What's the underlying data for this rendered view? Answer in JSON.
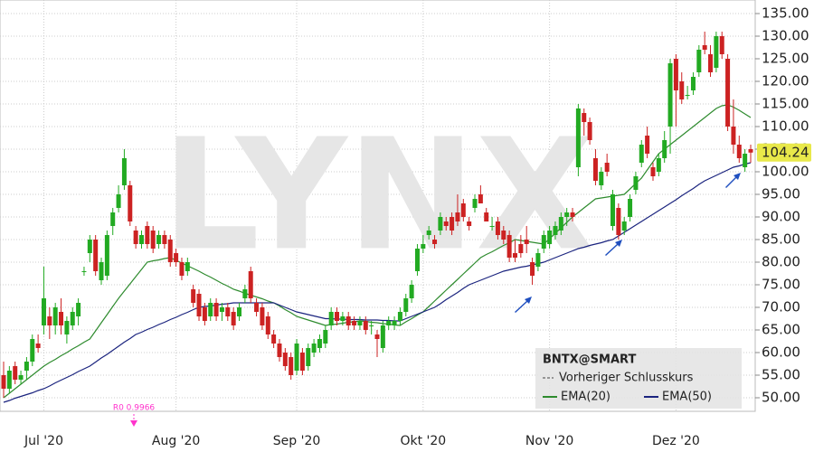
{
  "chart_data": {
    "type": "candlestick",
    "watermark": "LYNX",
    "symbol": "BNTX@SMART",
    "legend_items": [
      "Vorheriger Schlusskurs",
      "EMA(20)",
      "EMA(50)"
    ],
    "annotation": "R0 0.9966",
    "annotation_color": "#ff33cc",
    "up_color": "#22aa22",
    "down_color": "#cc2222",
    "categories": [
      null,
      null,
      null,
      null,
      null,
      null,
      null,
      "Jul '20",
      null,
      null,
      null,
      null,
      null,
      null,
      null,
      null,
      null,
      null,
      null,
      null,
      null,
      null,
      null,
      null,
      null,
      null,
      null,
      null,
      null,
      null,
      "Aug '20",
      null,
      null,
      null,
      null,
      null,
      null,
      null,
      null,
      null,
      null,
      null,
      null,
      null,
      null,
      null,
      null,
      null,
      null,
      null,
      null,
      "Sep '20",
      null,
      null,
      null,
      null,
      null,
      null,
      null,
      null,
      null,
      null,
      null,
      null,
      null,
      null,
      null,
      null,
      null,
      null,
      null,
      null,
      null,
      "Okt '20",
      null,
      null,
      null,
      null,
      null,
      null,
      null,
      null,
      null,
      null,
      null,
      null,
      null,
      null,
      null,
      null,
      null,
      null,
      null,
      null,
      null,
      "Nov '20",
      null,
      null,
      null,
      null,
      null,
      null,
      null,
      null,
      null,
      null,
      null,
      null,
      null,
      null,
      null,
      null,
      null,
      null,
      null,
      null,
      null,
      "Dez '20",
      null,
      null,
      null,
      null,
      null,
      null,
      null,
      null,
      null,
      null,
      null,
      null,
      null
    ],
    "candles": [
      [
        55,
        58,
        50,
        52
      ],
      [
        52,
        57,
        51,
        56
      ],
      [
        57,
        58,
        53,
        54
      ],
      [
        54,
        56,
        53,
        55
      ],
      [
        56,
        59,
        54,
        58
      ],
      [
        58,
        64,
        57,
        63
      ],
      [
        62,
        64,
        60,
        61
      ],
      [
        66,
        79,
        64,
        72
      ],
      [
        68,
        70,
        63,
        66
      ],
      [
        66,
        71,
        64,
        70
      ],
      [
        69,
        72,
        64,
        66
      ],
      [
        64,
        68,
        62,
        67
      ],
      [
        66,
        70,
        65,
        69
      ],
      [
        68,
        72,
        66,
        71
      ],
      [
        78,
        79,
        77,
        78
      ],
      [
        82,
        86,
        80,
        85
      ],
      [
        85,
        86,
        77,
        78
      ],
      [
        76,
        81,
        75,
        80
      ],
      [
        77,
        87,
        76,
        86
      ],
      [
        88,
        92,
        86,
        91
      ],
      [
        92,
        97,
        91,
        95
      ],
      [
        97,
        105,
        96,
        103
      ],
      [
        97,
        98,
        88,
        89
      ],
      [
        87,
        88,
        83,
        84
      ],
      [
        84,
        87,
        83,
        86
      ],
      [
        88,
        89,
        83,
        84
      ],
      [
        87,
        88,
        82,
        83
      ],
      [
        84,
        87,
        83,
        86
      ],
      [
        86,
        87,
        83,
        84
      ],
      [
        85,
        86,
        79,
        80
      ],
      [
        82,
        83,
        79,
        80
      ],
      [
        80,
        81,
        76,
        77
      ],
      [
        78,
        81,
        77,
        80
      ],
      [
        74,
        75,
        70,
        71
      ],
      [
        73,
        74,
        67,
        68
      ],
      [
        70,
        71,
        66,
        67
      ],
      [
        68,
        72,
        67,
        71
      ],
      [
        71,
        72,
        67,
        68
      ],
      [
        69,
        71,
        67,
        70
      ],
      [
        70,
        71,
        67,
        68
      ],
      [
        69,
        70,
        65,
        66
      ],
      [
        68,
        71,
        67,
        70
      ],
      [
        72,
        75,
        71,
        74
      ],
      [
        78,
        79,
        71,
        72
      ],
      [
        71,
        72,
        68,
        69
      ],
      [
        70,
        71,
        65,
        66
      ],
      [
        68,
        69,
        63,
        64
      ],
      [
        64,
        65,
        61,
        62
      ],
      [
        62,
        63,
        58,
        59
      ],
      [
        60,
        61,
        56,
        57
      ],
      [
        59,
        60,
        54,
        55
      ],
      [
        56,
        63,
        55,
        62
      ],
      [
        60,
        61,
        55,
        56
      ],
      [
        57,
        62,
        56,
        61
      ],
      [
        60,
        63,
        59,
        62
      ],
      [
        61,
        64,
        60,
        63
      ],
      [
        62,
        66,
        61,
        65
      ],
      [
        66,
        70,
        65,
        69
      ],
      [
        69,
        70,
        66,
        67
      ],
      [
        67,
        69,
        66,
        68
      ],
      [
        68,
        69,
        65,
        66
      ],
      [
        67,
        68,
        65,
        66
      ],
      [
        66,
        68,
        65,
        67
      ],
      [
        67,
        68,
        64,
        65
      ],
      [
        66,
        67,
        64,
        66
      ],
      [
        64,
        65,
        59,
        63
      ],
      [
        61,
        67,
        60,
        66
      ],
      [
        66,
        68,
        65,
        67
      ],
      [
        66,
        68,
        65,
        67
      ],
      [
        67,
        70,
        66,
        69
      ],
      [
        69,
        73,
        68,
        72
      ],
      [
        72,
        76,
        71,
        75
      ],
      [
        78,
        84,
        77,
        83
      ],
      [
        83,
        86,
        82,
        84
      ],
      [
        86,
        88,
        85,
        87
      ],
      [
        85,
        86,
        83,
        84
      ],
      [
        87,
        91,
        86,
        90
      ],
      [
        89,
        90,
        87,
        88
      ],
      [
        90,
        91,
        86,
        87
      ],
      [
        91,
        95,
        88,
        89
      ],
      [
        93,
        94,
        89,
        90
      ],
      [
        89,
        90,
        87,
        88
      ],
      [
        92,
        95,
        91,
        94
      ],
      [
        95,
        97,
        93,
        93
      ],
      [
        91,
        92,
        89,
        89
      ],
      [
        88,
        90,
        87,
        88
      ],
      [
        89,
        90,
        85,
        86
      ],
      [
        87,
        88,
        84,
        85
      ],
      [
        86,
        87,
        80,
        81
      ],
      [
        82,
        85,
        80,
        81
      ],
      [
        84,
        86,
        81,
        82
      ],
      [
        85,
        88,
        82,
        84
      ],
      [
        80,
        81,
        75,
        77
      ],
      [
        79,
        83,
        78,
        82
      ],
      [
        83,
        87,
        82,
        86
      ],
      [
        84,
        88,
        83,
        87
      ],
      [
        86,
        89,
        85,
        88
      ],
      [
        87,
        91,
        86,
        90
      ],
      [
        90,
        92,
        88,
        91
      ],
      [
        91,
        92,
        89,
        90
      ],
      [
        101,
        115,
        99,
        114
      ],
      [
        113,
        114,
        108,
        111
      ],
      [
        111,
        112,
        106,
        107
      ],
      [
        103,
        105,
        97,
        98
      ],
      [
        97,
        101,
        96,
        100
      ],
      [
        102,
        104,
        99,
        100
      ],
      [
        88,
        96,
        87,
        95
      ],
      [
        92,
        93,
        85,
        86
      ],
      [
        87,
        90,
        86,
        89
      ],
      [
        90,
        95,
        89,
        94
      ],
      [
        96,
        100,
        95,
        99
      ],
      [
        102,
        107,
        101,
        106
      ],
      [
        108,
        110,
        103,
        104
      ],
      [
        101,
        102,
        98,
        99
      ],
      [
        100,
        104,
        99,
        103
      ],
      [
        103,
        109,
        102,
        107
      ],
      [
        110,
        125,
        104,
        124
      ],
      [
        125,
        126,
        110,
        118
      ],
      [
        120,
        122,
        115,
        116
      ],
      [
        117,
        119,
        116,
        117
      ],
      [
        118,
        122,
        117,
        121
      ],
      [
        122,
        128,
        121,
        127
      ],
      [
        128,
        131,
        126,
        127
      ],
      [
        126,
        128,
        121,
        122
      ],
      [
        123,
        131,
        122,
        130
      ],
      [
        130,
        131,
        125,
        126
      ],
      [
        125,
        126,
        109,
        110
      ],
      [
        110,
        116,
        104,
        106
      ],
      [
        106,
        108,
        102,
        103
      ],
      [
        101,
        105,
        100,
        104
      ],
      [
        105,
        106,
        102,
        104.24
      ]
    ],
    "series": [
      {
        "name": "EMA(20)",
        "color": "#2e8b2e",
        "values": [
          50,
          51,
          52,
          53,
          54,
          55,
          56,
          57,
          57.8,
          58.5,
          59.3,
          60,
          60.8,
          61.5,
          62.3,
          63,
          64.8,
          66.6,
          68.4,
          70.2,
          72,
          73.6,
          75.2,
          76.8,
          78.4,
          80,
          80.3,
          80.5,
          80.8,
          81,
          80.4,
          79.8,
          79.2,
          78.6,
          78,
          77.3,
          76.7,
          76,
          75.3,
          74.7,
          74,
          73.6,
          73.1,
          72.7,
          72.3,
          71.9,
          71.4,
          71,
          70.3,
          69.5,
          68.8,
          68,
          67.6,
          67.2,
          66.8,
          66.4,
          66,
          66.2,
          66.3,
          66.5,
          66.7,
          66.8,
          67,
          66.9,
          66.7,
          66.6,
          66.4,
          66.3,
          66.1,
          66,
          66.8,
          67.5,
          68.3,
          69,
          70.2,
          71.4,
          72.6,
          73.8,
          75,
          76.2,
          77.4,
          78.6,
          79.8,
          81,
          81.7,
          82.3,
          83,
          83.7,
          84.3,
          85,
          84.8,
          84.6,
          84.4,
          84.2,
          84,
          85.2,
          86.4,
          87.6,
          88.8,
          90,
          91,
          92,
          93,
          94,
          94.2,
          94.4,
          94.6,
          94.8,
          95,
          96.2,
          97.4,
          98.6,
          100.4,
          102.2,
          104,
          105,
          106,
          107,
          108,
          109,
          110,
          111,
          112,
          113,
          114,
          114.6,
          114.8,
          114.3,
          113.6,
          112.8,
          112
        ]
      },
      {
        "name": "EMA(50)",
        "color": "#1a237e",
        "values": [
          49,
          49.4,
          49.9,
          50.3,
          50.7,
          51.1,
          51.6,
          52,
          52.6,
          53.3,
          53.9,
          54.5,
          55.1,
          55.8,
          56.4,
          57,
          57.9,
          58.8,
          59.6,
          60.5,
          61.4,
          62.3,
          63.1,
          64,
          64.5,
          65.1,
          65.6,
          66.2,
          66.7,
          67.3,
          67.8,
          68.4,
          68.9,
          69.5,
          70,
          70.2,
          70.3,
          70.5,
          70.7,
          70.8,
          71,
          71,
          71,
          71,
          71,
          71,
          71,
          71,
          70.5,
          70,
          69.5,
          69,
          68.7,
          68.4,
          68.1,
          67.8,
          67.5,
          67.5,
          67.4,
          67.4,
          67.3,
          67.3,
          67.3,
          67.2,
          67.2,
          67.2,
          67.1,
          67.1,
          67,
          67,
          67.5,
          68,
          68.5,
          69,
          69.5,
          70,
          70.8,
          71.7,
          72.5,
          73.3,
          74.2,
          75,
          75.5,
          76,
          76.5,
          77,
          77.5,
          78,
          78.3,
          78.6,
          78.9,
          79.1,
          79.4,
          79.7,
          80,
          80.5,
          81,
          81.5,
          82,
          82.5,
          83,
          83.3,
          83.7,
          84,
          84.3,
          84.7,
          85,
          85.8,
          86.6,
          87.4,
          88.2,
          89,
          89.8,
          90.6,
          91.4,
          92.2,
          93,
          93.8,
          94.7,
          95.5,
          96.3,
          97.2,
          98,
          98.6,
          99.2,
          99.8,
          100.4,
          101,
          101.3,
          101.7,
          102
        ]
      }
    ],
    "ylim": [
      47,
      138
    ],
    "yticks": [
      {
        "value": 50,
        "label": "50.00"
      },
      {
        "value": 55,
        "label": "55.00"
      },
      {
        "value": 60,
        "label": "60.00"
      },
      {
        "value": 65,
        "label": "65.00"
      },
      {
        "value": 70,
        "label": "70.00"
      },
      {
        "value": 75,
        "label": "75.00"
      },
      {
        "value": 80,
        "label": "80.00"
      },
      {
        "value": 85,
        "label": "85.00"
      },
      {
        "value": 90,
        "label": "90.00"
      },
      {
        "value": 95,
        "label": "95.00"
      },
      {
        "value": 100,
        "label": "100.00"
      },
      {
        "value": 105,
        "label": "105.00"
      },
      {
        "value": 110,
        "label": "110.00"
      },
      {
        "value": 115,
        "label": "115.00"
      },
      {
        "value": 120,
        "label": "120.00"
      },
      {
        "value": 125,
        "label": "125.00"
      },
      {
        "value": 130,
        "label": "130.00"
      },
      {
        "value": 135,
        "label": "135.00"
      }
    ],
    "grid": true
  }
}
